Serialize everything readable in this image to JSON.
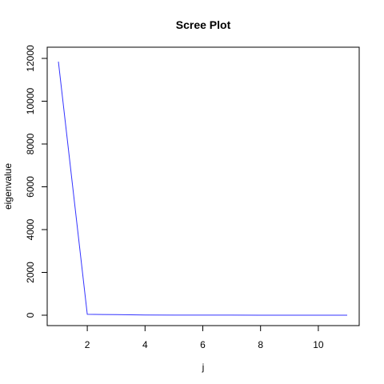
{
  "chart_data": {
    "type": "line",
    "title": "Scree Plot",
    "xlabel": "j",
    "ylabel": "eigenvalue",
    "x": [
      1,
      2,
      3,
      4,
      5,
      6,
      7,
      8,
      9,
      10,
      11
    ],
    "series": [
      {
        "values": [
          11850,
          40,
          30,
          10,
          6,
          4,
          3,
          2,
          1,
          1,
          0
        ],
        "color": "#3333ff"
      }
    ],
    "xlim": [
      1,
      11
    ],
    "ylim": [
      0,
      12000
    ],
    "x_ticks": [
      2,
      4,
      6,
      8,
      10
    ],
    "y_ticks": [
      0,
      2000,
      4000,
      6000,
      8000,
      10000,
      12000
    ],
    "grid": false,
    "legend": "none"
  }
}
